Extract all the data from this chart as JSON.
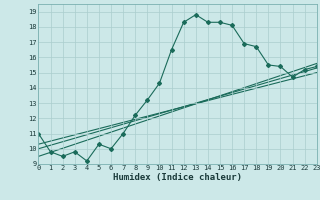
{
  "title": "",
  "xlabel": "Humidex (Indice chaleur)",
  "bg_color": "#cce8e8",
  "line_color": "#1a6b5a",
  "grid_color": "#aacece",
  "series1_x": [
    0,
    1,
    2,
    3,
    4,
    5,
    6,
    7,
    8,
    9,
    10,
    11,
    12,
    13,
    14,
    15,
    16,
    17,
    18,
    19,
    20,
    21,
    22,
    23
  ],
  "series1_y": [
    11,
    9.8,
    9.5,
    9.8,
    9.2,
    10.3,
    10.0,
    11.0,
    12.2,
    13.2,
    14.3,
    16.5,
    18.3,
    18.8,
    18.3,
    18.3,
    18.1,
    16.9,
    16.7,
    15.5,
    15.4,
    14.7,
    15.2,
    15.4
  ],
  "series2_x": [
    0,
    23
  ],
  "series2_y": [
    9.5,
    15.6
  ],
  "series3_x": [
    0,
    23
  ],
  "series3_y": [
    10.0,
    15.3
  ],
  "series4_x": [
    0,
    23
  ],
  "series4_y": [
    10.3,
    15.0
  ],
  "xlim": [
    0,
    23
  ],
  "ylim": [
    9,
    19.5
  ],
  "yticks": [
    9,
    10,
    11,
    12,
    13,
    14,
    15,
    16,
    17,
    18,
    19
  ],
  "xticks": [
    0,
    1,
    2,
    3,
    4,
    5,
    6,
    7,
    8,
    9,
    10,
    11,
    12,
    13,
    14,
    15,
    16,
    17,
    18,
    19,
    20,
    21,
    22,
    23
  ],
  "xlabel_fontsize": 6.5,
  "tick_fontsize": 5.0
}
